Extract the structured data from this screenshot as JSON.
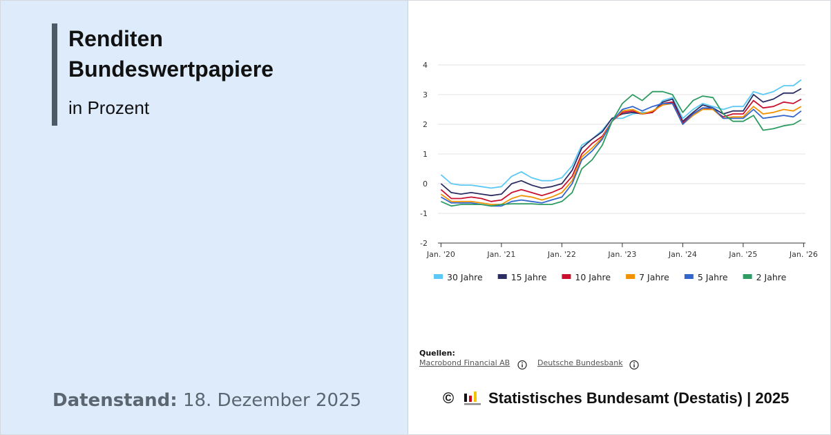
{
  "chart_data": {
    "type": "line",
    "title": "Renditen Bundeswertpapiere",
    "subtitle": "in Prozent",
    "x": [
      2020.0,
      2020.17,
      2020.33,
      2020.5,
      2020.67,
      2020.83,
      2021.0,
      2021.17,
      2021.33,
      2021.5,
      2021.67,
      2021.83,
      2022.0,
      2022.17,
      2022.33,
      2022.5,
      2022.67,
      2022.83,
      2023.0,
      2023.17,
      2023.33,
      2023.5,
      2023.67,
      2023.83,
      2024.0,
      2024.17,
      2024.33,
      2024.5,
      2024.67,
      2024.83,
      2025.0,
      2025.17,
      2025.33,
      2025.5,
      2025.67,
      2025.83,
      2025.96
    ],
    "series": [
      {
        "name": "30 Jahre",
        "color": "#5bc8f5",
        "values": [
          0.3,
          0.0,
          -0.05,
          -0.05,
          -0.1,
          -0.15,
          -0.1,
          0.25,
          0.4,
          0.2,
          0.1,
          0.1,
          0.2,
          0.6,
          1.3,
          1.5,
          1.8,
          2.2,
          2.2,
          2.35,
          2.4,
          2.4,
          2.8,
          2.9,
          2.2,
          2.5,
          2.7,
          2.6,
          2.5,
          2.6,
          2.6,
          3.1,
          3.0,
          3.1,
          3.3,
          3.3,
          3.5
        ]
      },
      {
        "name": "15 Jahre",
        "color": "#2b2d63",
        "values": [
          0.0,
          -0.3,
          -0.35,
          -0.3,
          -0.35,
          -0.4,
          -0.35,
          0.0,
          0.1,
          -0.05,
          -0.15,
          -0.1,
          0.0,
          0.45,
          1.2,
          1.5,
          1.75,
          2.2,
          2.35,
          2.4,
          2.35,
          2.4,
          2.75,
          2.85,
          2.1,
          2.4,
          2.65,
          2.55,
          2.35,
          2.45,
          2.45,
          3.0,
          2.75,
          2.85,
          3.05,
          3.05,
          3.2
        ]
      },
      {
        "name": "10 Jahre",
        "color": "#c8102e",
        "values": [
          -0.2,
          -0.5,
          -0.5,
          -0.45,
          -0.5,
          -0.6,
          -0.55,
          -0.3,
          -0.2,
          -0.3,
          -0.4,
          -0.3,
          -0.15,
          0.25,
          1.0,
          1.35,
          1.6,
          2.1,
          2.4,
          2.45,
          2.35,
          2.4,
          2.7,
          2.75,
          2.05,
          2.35,
          2.55,
          2.5,
          2.25,
          2.35,
          2.35,
          2.8,
          2.55,
          2.6,
          2.75,
          2.7,
          2.85
        ]
      },
      {
        "name": "7 Jahre",
        "color": "#f39200",
        "values": [
          -0.35,
          -0.6,
          -0.6,
          -0.6,
          -0.65,
          -0.7,
          -0.7,
          -0.5,
          -0.4,
          -0.45,
          -0.55,
          -0.45,
          -0.3,
          0.1,
          0.9,
          1.2,
          1.55,
          2.1,
          2.45,
          2.5,
          2.35,
          2.45,
          2.65,
          2.7,
          2.0,
          2.3,
          2.5,
          2.5,
          2.2,
          2.25,
          2.25,
          2.6,
          2.35,
          2.4,
          2.5,
          2.45,
          2.6
        ]
      },
      {
        "name": "5 Jahre",
        "color": "#3366cc",
        "values": [
          -0.45,
          -0.65,
          -0.65,
          -0.65,
          -0.7,
          -0.75,
          -0.75,
          -0.6,
          -0.55,
          -0.6,
          -0.65,
          -0.55,
          -0.45,
          0.0,
          0.8,
          1.1,
          1.5,
          2.1,
          2.5,
          2.6,
          2.45,
          2.6,
          2.7,
          2.7,
          2.0,
          2.35,
          2.55,
          2.55,
          2.2,
          2.2,
          2.2,
          2.5,
          2.2,
          2.25,
          2.3,
          2.25,
          2.45
        ]
      },
      {
        "name": "2 Jahre",
        "color": "#2e9b62",
        "values": [
          -0.6,
          -0.75,
          -0.7,
          -0.7,
          -0.7,
          -0.75,
          -0.7,
          -0.68,
          -0.68,
          -0.68,
          -0.7,
          -0.7,
          -0.6,
          -0.3,
          0.5,
          0.8,
          1.3,
          2.1,
          2.7,
          3.0,
          2.8,
          3.1,
          3.1,
          3.0,
          2.4,
          2.8,
          2.95,
          2.9,
          2.35,
          2.1,
          2.1,
          2.3,
          1.8,
          1.85,
          1.95,
          2.0,
          2.15
        ]
      }
    ],
    "xlim": [
      2019.95,
      2026.03
    ],
    "ylim": [
      -2,
      4
    ],
    "xticks": [
      {
        "value": 2020,
        "label": "Jan. '20"
      },
      {
        "value": 2021,
        "label": "Jan. '21"
      },
      {
        "value": 2022,
        "label": "Jan. '22"
      },
      {
        "value": 2023,
        "label": "Jan. '23"
      },
      {
        "value": 2024,
        "label": "Jan. '24"
      },
      {
        "value": 2025,
        "label": "Jan. '25"
      },
      {
        "value": 2026,
        "label": "Jan. '26"
      }
    ],
    "yticks": [
      -2,
      -1,
      0,
      1,
      2,
      3,
      4
    ],
    "grid": true,
    "legend": "bottom"
  },
  "datenstand": {
    "label": "Datenstand:",
    "date": "18. Dezember 2025"
  },
  "sources": {
    "label": "Quellen:",
    "links": [
      "Macrobond Financial AB",
      "Deutsche Bundesbank"
    ]
  },
  "copyright": {
    "symbol": "©",
    "text": "Statistisches Bundesamt (Destatis) | 2025"
  }
}
